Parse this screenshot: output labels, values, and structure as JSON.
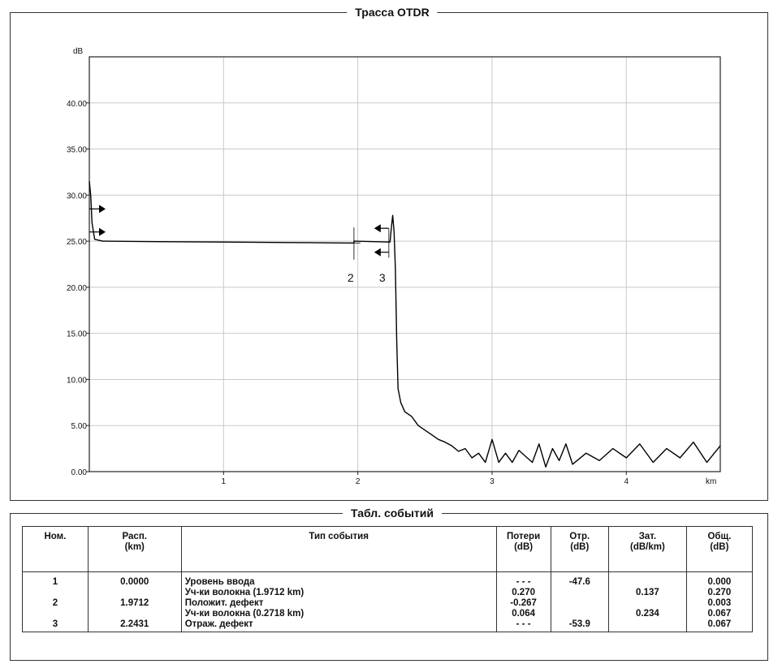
{
  "trace": {
    "title": "Трасса OTDR"
  },
  "events_table": {
    "title": "Табл. событий",
    "headers": {
      "num": [
        "Ном."
      ],
      "dist": [
        "Расп.",
        "(km)"
      ],
      "type": [
        "Тип события"
      ],
      "loss": [
        "Потери",
        "(dB)"
      ],
      "refl": [
        "Отр.",
        "(dB)"
      ],
      "att": [
        "Зат.",
        "(dB/km)"
      ],
      "total": [
        "Общ.",
        "(dB)"
      ]
    },
    "rows": [
      [
        "1",
        "",
        "",
        "",
        "",
        ""
      ],
      [
        "",
        "",
        "",
        "",
        "",
        ""
      ],
      [
        "2",
        "",
        "",
        "",
        "",
        ""
      ],
      [
        "",
        "",
        "",
        "",
        "",
        ""
      ],
      [
        "3",
        "",
        "",
        "",
        "",
        ""
      ]
    ],
    "num_col": [
      "1",
      "",
      "2",
      "",
      "3"
    ],
    "dist_col": [
      "0.0000",
      "",
      "1.9712",
      "",
      "2.2431"
    ],
    "type_col": [
      "Уровень ввода",
      "Уч-ки волокна (1.9712 km)",
      "Положит. дефект",
      "Уч-ки волокна (0.2718 km)",
      "Отраж. дефект"
    ],
    "loss_col": [
      "- - -",
      "0.270",
      "-0.267",
      "0.064",
      "- - -"
    ],
    "refl_col": [
      "-47.6",
      "",
      "",
      "",
      "-53.9"
    ],
    "att_col": [
      "",
      "0.137",
      "",
      "0.234",
      ""
    ],
    "total_col": [
      "0.000",
      "0.270",
      "0.003",
      "0.067",
      "0.067"
    ]
  },
  "chart_data": {
    "type": "line",
    "title": "Трасса OTDR",
    "xlabel": "km",
    "ylabel": "dB",
    "xlim": [
      0,
      4.7
    ],
    "ylim": [
      0,
      45
    ],
    "x_ticks": [
      "1",
      "2",
      "3",
      "4"
    ],
    "y_ticks": [
      "0.00",
      "5.00",
      "10.00",
      "15.00",
      "20.00",
      "25.00",
      "30.00",
      "35.00",
      "40.00"
    ],
    "grid": true,
    "series": [
      {
        "values": [
          [
            0.0,
            31.5
          ],
          [
            0.01,
            30.0
          ],
          [
            0.02,
            27.0
          ],
          [
            0.04,
            25.2
          ],
          [
            0.1,
            25.0
          ],
          [
            0.5,
            24.95
          ],
          [
            1.0,
            24.9
          ],
          [
            1.5,
            24.85
          ],
          [
            1.97,
            24.8
          ],
          [
            1.972,
            25.0
          ],
          [
            2.24,
            24.9
          ],
          [
            2.25,
            26.5
          ],
          [
            2.26,
            27.8
          ],
          [
            2.27,
            26.0
          ],
          [
            2.28,
            22.0
          ],
          [
            2.29,
            14.0
          ],
          [
            2.3,
            9.0
          ],
          [
            2.32,
            7.5
          ],
          [
            2.35,
            6.5
          ],
          [
            2.4,
            6.0
          ],
          [
            2.45,
            5.0
          ],
          [
            2.5,
            4.5
          ],
          [
            2.55,
            4.0
          ],
          [
            2.6,
            3.5
          ],
          [
            2.65,
            3.2
          ],
          [
            2.7,
            2.8
          ],
          [
            2.75,
            2.2
          ],
          [
            2.8,
            2.5
          ],
          [
            2.85,
            1.5
          ],
          [
            2.9,
            2.0
          ],
          [
            2.95,
            1.0
          ],
          [
            3.0,
            3.5
          ],
          [
            3.05,
            1.0
          ],
          [
            3.1,
            2.0
          ],
          [
            3.15,
            1.0
          ],
          [
            3.2,
            2.3
          ],
          [
            3.3,
            1.0
          ],
          [
            3.35,
            3.0
          ],
          [
            3.4,
            0.5
          ],
          [
            3.45,
            2.5
          ],
          [
            3.5,
            1.2
          ],
          [
            3.55,
            3.0
          ],
          [
            3.6,
            0.8
          ],
          [
            3.7,
            2.0
          ],
          [
            3.8,
            1.2
          ],
          [
            3.9,
            2.5
          ],
          [
            4.0,
            1.5
          ],
          [
            4.1,
            3.0
          ],
          [
            4.2,
            1.0
          ],
          [
            4.3,
            2.5
          ],
          [
            4.4,
            1.5
          ],
          [
            4.5,
            3.2
          ],
          [
            4.6,
            1.0
          ],
          [
            4.7,
            2.8
          ]
        ]
      }
    ],
    "event_markers": [
      {
        "label": "2",
        "x": 1.9712
      },
      {
        "label": "3",
        "x": 2.2431
      }
    ]
  }
}
